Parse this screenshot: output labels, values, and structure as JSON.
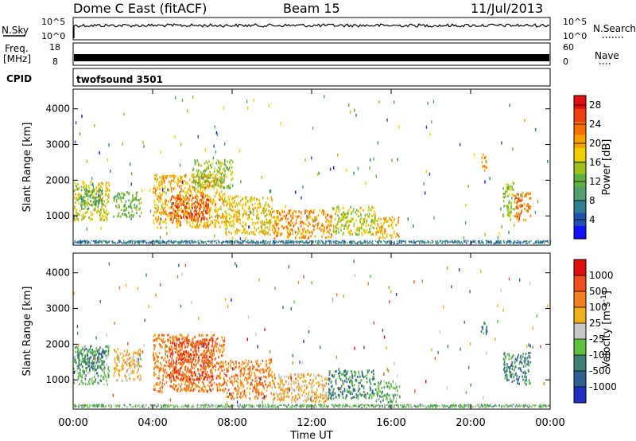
{
  "header": {
    "station": "Dome C East (fitACF)",
    "beam": "Beam 15",
    "date": "11/Jul/2013"
  },
  "strips": {
    "nsky_label": "N.Sky",
    "nsky_ticks": [
      "10^5",
      "10^0"
    ],
    "nsearch_label": "N.Search",
    "nsearch_ticks": [
      "10^5",
      "10^0"
    ],
    "freq_label_line1": "Freq.",
    "freq_label_line2": "[MHz]",
    "freq_ticks": [
      "18",
      "8"
    ],
    "nave_label": "Nave",
    "nave_ticks": [
      "60",
      "0"
    ],
    "cpid_label": "CPID",
    "cpid_text": "twofsound 3501"
  },
  "chart_data": [
    {
      "type": "heatmap",
      "panel": "power",
      "ylabel": "Slant Range [km]",
      "xlabel": "Time UT",
      "ylim": [
        180,
        4550
      ],
      "yticks": [
        1000,
        2000,
        3000,
        4000
      ],
      "xlim_hours": [
        0,
        24
      ],
      "xticks": [
        "00:00",
        "04:00",
        "08:00",
        "12:00",
        "16:00",
        "20:00",
        "00:00"
      ],
      "xtick_hours": [
        0,
        4,
        8,
        12,
        16,
        20,
        24
      ],
      "colorbar": {
        "label": "Power [dB]",
        "ticks": [
          "4",
          "8",
          "12",
          "16",
          "20",
          "24",
          "28"
        ],
        "tick_values": [
          4,
          8,
          12,
          16,
          20,
          24,
          28
        ],
        "range": [
          0,
          30
        ],
        "colors": [
          "#1010ff",
          "#2050b0",
          "#2f7f90",
          "#50a070",
          "#60b040",
          "#a0c020",
          "#f0d000",
          "#f8a000",
          "#f87000",
          "#f04010",
          "#e01010"
        ]
      },
      "echo_regions": [
        {
          "t0": 0.0,
          "t1": 1.8,
          "r0": 900,
          "r1": 2000,
          "level": 17
        },
        {
          "t0": 0.3,
          "t1": 1.5,
          "r0": 1200,
          "r1": 1800,
          "level": 10
        },
        {
          "t0": 2.0,
          "t1": 3.4,
          "r0": 1000,
          "r1": 1700,
          "level": 12
        },
        {
          "t0": 4.0,
          "t1": 7.6,
          "r0": 700,
          "r1": 2200,
          "level": 20
        },
        {
          "t0": 4.8,
          "t1": 6.8,
          "r0": 900,
          "r1": 1600,
          "level": 26
        },
        {
          "t0": 6.0,
          "t1": 8.0,
          "r0": 1800,
          "r1": 2600,
          "level": 14
        },
        {
          "t0": 7.6,
          "t1": 10.0,
          "r0": 500,
          "r1": 1600,
          "level": 18
        },
        {
          "t0": 10.0,
          "t1": 13.0,
          "r0": 400,
          "r1": 1200,
          "level": 22
        },
        {
          "t0": 13.0,
          "t1": 15.2,
          "r0": 500,
          "r1": 1300,
          "level": 16
        },
        {
          "t0": 15.2,
          "t1": 16.4,
          "r0": 400,
          "r1": 1000,
          "level": 20
        },
        {
          "t0": 21.6,
          "t1": 22.2,
          "r0": 1000,
          "r1": 2000,
          "level": 14
        },
        {
          "t0": 22.2,
          "t1": 23.0,
          "r0": 900,
          "r1": 1700,
          "level": 24
        },
        {
          "t0": 20.5,
          "t1": 20.8,
          "r0": 2300,
          "r1": 2700,
          "level": 22
        }
      ],
      "near_range_band": {
        "r0": 250,
        "r1": 330,
        "level": 6
      }
    },
    {
      "type": "heatmap",
      "panel": "velocity",
      "ylabel": "Slant Range [km]",
      "xlabel": "Time UT",
      "ylim": [
        180,
        4550
      ],
      "yticks": [
        1000,
        2000,
        3000,
        4000
      ],
      "xlim_hours": [
        0,
        24
      ],
      "xticks": [
        "00:00",
        "04:00",
        "08:00",
        "12:00",
        "16:00",
        "20:00",
        "00:00"
      ],
      "xtick_hours": [
        0,
        4,
        8,
        12,
        16,
        20,
        24
      ],
      "colorbar": {
        "label": "Velocity [m s",
        "label_sup": "-1",
        "label_end": "]",
        "ticks": [
          "1000",
          "500",
          "100",
          "25",
          "-25",
          "-100",
          "-500",
          "-1000"
        ],
        "colors": [
          "#2030c0",
          "#306090",
          "#408070",
          "#60c040",
          "#c8c8c8",
          "#f0b020",
          "#f08020",
          "#f05020",
          "#e01010"
        ]
      },
      "echo_regions": [
        {
          "t0": 0.0,
          "t1": 1.8,
          "r0": 900,
          "r1": 2000,
          "level": 3
        },
        {
          "t0": 0.2,
          "t1": 1.6,
          "r0": 1300,
          "r1": 1900,
          "level": 2
        },
        {
          "t0": 2.0,
          "t1": 3.4,
          "r0": 1000,
          "r1": 1900,
          "level": 5
        },
        {
          "t0": 4.0,
          "t1": 7.6,
          "r0": 700,
          "r1": 2300,
          "level": 6
        },
        {
          "t0": 4.8,
          "t1": 7.0,
          "r0": 1000,
          "r1": 2200,
          "level": 7
        },
        {
          "t0": 7.6,
          "t1": 10.0,
          "r0": 500,
          "r1": 1600,
          "level": 6
        },
        {
          "t0": 10.0,
          "t1": 12.8,
          "r0": 400,
          "r1": 1200,
          "level": 5
        },
        {
          "t0": 12.8,
          "t1": 15.2,
          "r0": 500,
          "r1": 1300,
          "level": 2
        },
        {
          "t0": 15.2,
          "t1": 16.4,
          "r0": 400,
          "r1": 1000,
          "level": 3
        },
        {
          "t0": 21.6,
          "t1": 23.0,
          "r0": 900,
          "r1": 1800,
          "level": 2
        },
        {
          "t0": 20.5,
          "t1": 20.8,
          "r0": 2300,
          "r1": 2700,
          "level": 2
        }
      ],
      "near_range_band": {
        "r0": 250,
        "r1": 330,
        "level": 3
      }
    }
  ]
}
